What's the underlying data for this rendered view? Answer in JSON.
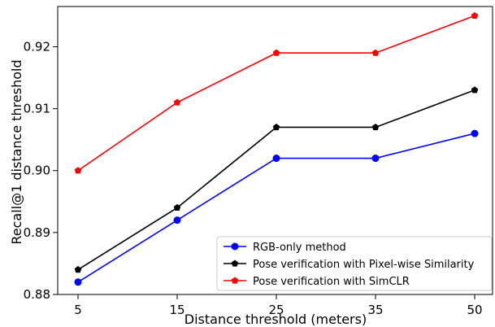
{
  "chart_data": {
    "type": "line",
    "title": "",
    "xlabel": "Distance threshold (meters)",
    "ylabel": "Recall@1 distance threshold",
    "categories": [
      "5",
      "15",
      "25",
      "35",
      "50"
    ],
    "y_ticks": [
      "0.88",
      "0.89",
      "0.90",
      "0.91",
      "0.92"
    ],
    "ylim": [
      0.88,
      0.9265
    ],
    "grid": false,
    "legend_position": "lower-right",
    "series": [
      {
        "name": "RGB-only method",
        "color": "#0000ff",
        "marker": "circle",
        "values": [
          0.882,
          0.892,
          0.902,
          0.902,
          0.906
        ]
      },
      {
        "name": "Pose verification with Pixel-wise Similarity",
        "color": "#000000",
        "marker": "pentagon",
        "values": [
          0.884,
          0.894,
          0.907,
          0.907,
          0.913
        ]
      },
      {
        "name": "Pose verification with SimCLR",
        "color": "#ff0000",
        "marker": "pentagon",
        "values": [
          0.9,
          0.911,
          0.919,
          0.919,
          0.925
        ]
      }
    ]
  }
}
